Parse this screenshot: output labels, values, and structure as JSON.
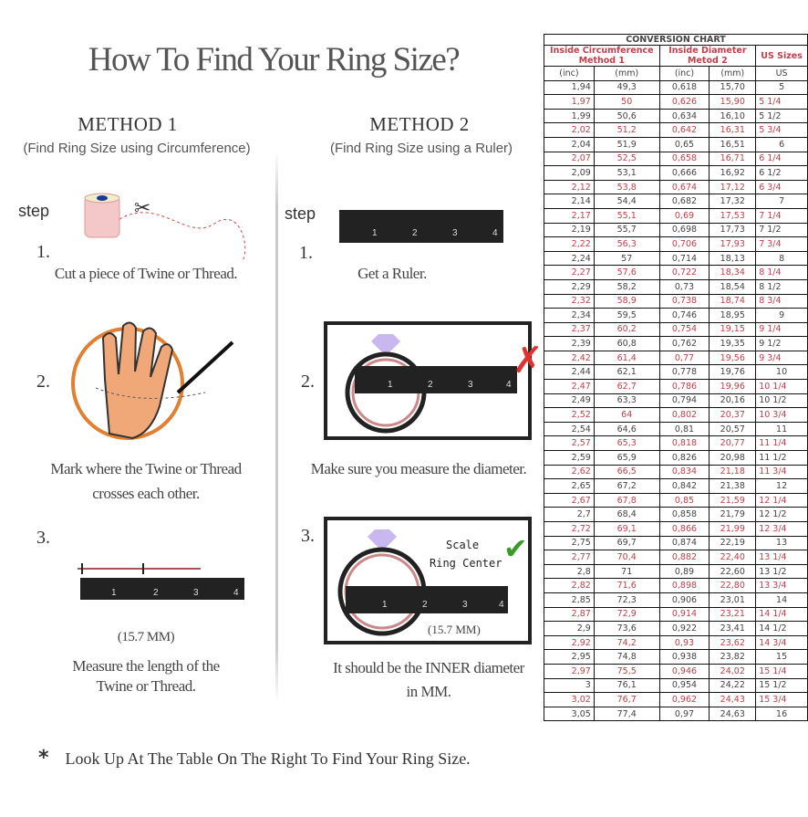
{
  "title": "How To Find Your Ring Size?",
  "method1": {
    "heading": "METHOD 1",
    "subtitle": "(Find Ring Size using Circumference)",
    "step_label": "step",
    "steps": [
      {
        "number": "1.",
        "text": "Cut a piece of  Twine or Thread."
      },
      {
        "number": "2.",
        "text_line1": "Mark where the Twine or Thread",
        "text_line2": "crosses each other."
      },
      {
        "number": "3.",
        "measure": "(15.7 MM)",
        "text_line1": "Measure the length of the",
        "text_line2": "Twine or Thread."
      }
    ]
  },
  "method2": {
    "heading": "METHOD 2",
    "subtitle": "(Find Ring Size using a Ruler)",
    "step_label": "step",
    "steps": [
      {
        "number": "1.",
        "text": "Get a Ruler."
      },
      {
        "number": "2.",
        "text": "Make sure you measure the diameter."
      },
      {
        "number": "3.",
        "scale_line1": "Scale",
        "scale_line2": "Ring Center",
        "measure": "(15.7 MM)",
        "text_line1": "It should be the INNER diameter",
        "text_line2": "in MM."
      }
    ]
  },
  "ruler_numbers": [
    "1",
    "2",
    "3",
    "4"
  ],
  "note": {
    "symbol": "*",
    "text": "Look Up At The Table On The Right To Find Your Ring Size."
  },
  "colors": {
    "accent_red": "#c0404a",
    "check_green": "#3a9a2a",
    "wrong_red": "#e03030"
  },
  "table": {
    "title": "CONVERSION CHART",
    "group1_line1": "Inside Circumference",
    "group1_line2": "Method 1",
    "group2_line1": "Inside Diameter",
    "group2_line2": "Metod 2",
    "group3": "US Sizes",
    "units": [
      "(inc)",
      "(mm)",
      "(inc)",
      "(mm)",
      "US"
    ],
    "rows": [
      [
        "1,94",
        "49,3",
        "0,618",
        "15,70",
        "5"
      ],
      [
        "1,97",
        "50",
        "0,626",
        "15,90",
        "5 1/4"
      ],
      [
        "1,99",
        "50,6",
        "0,634",
        "16,10",
        "5 1/2"
      ],
      [
        "2,02",
        "51,2",
        "0,642",
        "16,31",
        "5 3/4"
      ],
      [
        "2,04",
        "51,9",
        "0,65",
        "16,51",
        "6"
      ],
      [
        "2,07",
        "52,5",
        "0,658",
        "16,71",
        "6 1/4"
      ],
      [
        "2,09",
        "53,1",
        "0,666",
        "16,92",
        "6 1/2"
      ],
      [
        "2,12",
        "53,8",
        "0,674",
        "17,12",
        "6 3/4"
      ],
      [
        "2,14",
        "54,4",
        "0,682",
        "17,32",
        "7"
      ],
      [
        "2,17",
        "55,1",
        "0,69",
        "17,53",
        "7 1/4"
      ],
      [
        "2,19",
        "55,7",
        "0,698",
        "17,73",
        "7 1/2"
      ],
      [
        "2,22",
        "56,3",
        "0,706",
        "17,93",
        "7 3/4"
      ],
      [
        "2,24",
        "57",
        "0,714",
        "18,13",
        "8"
      ],
      [
        "2,27",
        "57,6",
        "0,722",
        "18,34",
        "8 1/4"
      ],
      [
        "2,29",
        "58,2",
        "0,73",
        "18,54",
        "8 1/2"
      ],
      [
        "2,32",
        "58,9",
        "0,738",
        "18,74",
        "8 3/4"
      ],
      [
        "2,34",
        "59,5",
        "0,746",
        "18,95",
        "9"
      ],
      [
        "2,37",
        "60,2",
        "0,754",
        "19,15",
        "9 1/4"
      ],
      [
        "2,39",
        "60,8",
        "0,762",
        "19,35",
        "9 1/2"
      ],
      [
        "2,42",
        "61,4",
        "0,77",
        "19,56",
        "9 3/4"
      ],
      [
        "2,44",
        "62,1",
        "0,778",
        "19,76",
        "10"
      ],
      [
        "2,47",
        "62,7",
        "0,786",
        "19,96",
        "10 1/4"
      ],
      [
        "2,49",
        "63,3",
        "0,794",
        "20,16",
        "10 1/2"
      ],
      [
        "2,52",
        "64",
        "0,802",
        "20,37",
        "10 3/4"
      ],
      [
        "2,54",
        "64,6",
        "0,81",
        "20,57",
        "11"
      ],
      [
        "2,57",
        "65,3",
        "0,818",
        "20,77",
        "11 1/4"
      ],
      [
        "2,59",
        "65,9",
        "0,826",
        "20,98",
        "11 1/2"
      ],
      [
        "2,62",
        "66,5",
        "0,834",
        "21,18",
        "11 3/4"
      ],
      [
        "2,65",
        "67,2",
        "0,842",
        "21,38",
        "12"
      ],
      [
        "2,67",
        "67,8",
        "0,85",
        "21,59",
        "12 1/4"
      ],
      [
        "2,7",
        "68,4",
        "0,858",
        "21,79",
        "12 1/2"
      ],
      [
        "2,72",
        "69,1",
        "0,866",
        "21,99",
        "12 3/4"
      ],
      [
        "2,75",
        "69,7",
        "0,874",
        "22,19",
        "13"
      ],
      [
        "2,77",
        "70,4",
        "0,882",
        "22,40",
        "13 1/4"
      ],
      [
        "2,8",
        "71",
        "0,89",
        "22,60",
        "13 1/2"
      ],
      [
        "2,82",
        "71,6",
        "0,898",
        "22,80",
        "13 3/4"
      ],
      [
        "2,85",
        "72,3",
        "0,906",
        "23,01",
        "14"
      ],
      [
        "2,87",
        "72,9",
        "0,914",
        "23,21",
        "14 1/4"
      ],
      [
        "2,9",
        "73,6",
        "0,922",
        "23,41",
        "14 1/2"
      ],
      [
        "2,92",
        "74,2",
        "0,93",
        "23,62",
        "14 3/4"
      ],
      [
        "2,95",
        "74,8",
        "0,938",
        "23,82",
        "15"
      ],
      [
        "2,97",
        "75,5",
        "0,946",
        "24,02",
        "15 1/4"
      ],
      [
        "3",
        "76,1",
        "0,954",
        "24,22",
        "15 1/2"
      ],
      [
        "3,02",
        "76,7",
        "0,962",
        "24,43",
        "15 3/4"
      ],
      [
        "3,05",
        "77,4",
        "0,97",
        "24,63",
        "16"
      ]
    ]
  }
}
